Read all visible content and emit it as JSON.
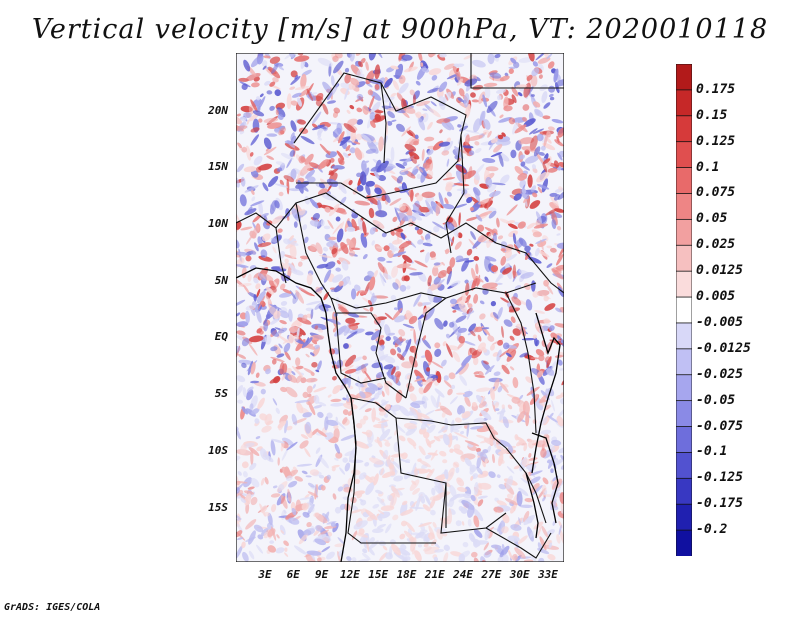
{
  "title": "Vertical velocity [m/s] at 900hPa, VT: 2020010118",
  "credit": "GrADS: IGES/COLA",
  "lat_labels": [
    "20N",
    "15N",
    "10N",
    "5N",
    "EQ",
    "5S",
    "10S",
    "15S"
  ],
  "lon_labels": [
    "3E",
    "6E",
    "9E",
    "12E",
    "15E",
    "18E",
    "21E",
    "24E",
    "27E",
    "30E",
    "33E"
  ],
  "colorbar": {
    "labels": [
      "0.175",
      "0.15",
      "0.125",
      "0.1",
      "0.075",
      "0.05",
      "0.025",
      "0.0125",
      "0.005",
      "-0.005",
      "-0.0125",
      "-0.025",
      "-0.05",
      "-0.075",
      "-0.1",
      "-0.125",
      "-0.175",
      "-0.2"
    ],
    "colors": [
      "#b21a1a",
      "#c62828",
      "#d63a3a",
      "#e04f4f",
      "#e86a6a",
      "#ee8585",
      "#f2a0a0",
      "#f6c0c0",
      "#fadcdc",
      "#ffffff",
      "#d8d8f8",
      "#c0c0f4",
      "#a6a6ee",
      "#8a8ae6",
      "#6e6edc",
      "#5252d0",
      "#3838c2",
      "#2020b0",
      "#1010a0"
    ]
  }
}
